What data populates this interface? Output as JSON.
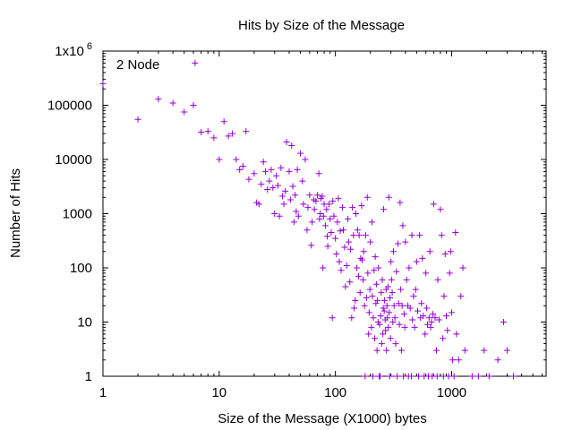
{
  "chart_data": {
    "type": "scatter",
    "title": "Hits by Size of the Message",
    "xlabel": "Size of the Message (X1000) bytes",
    "ylabel": "Number of Hits",
    "x_scale": "log",
    "y_scale": "log",
    "xlim": [
      1,
      6500
    ],
    "ylim": [
      1,
      1000000
    ],
    "grid": false,
    "legend_position": "top-left",
    "x_ticks": [
      {
        "value": 1,
        "label": "1"
      },
      {
        "value": 10,
        "label": "10"
      },
      {
        "value": 100,
        "label": "100"
      },
      {
        "value": 1000,
        "label": "1000"
      }
    ],
    "y_ticks": [
      {
        "value": 1,
        "label": "1"
      },
      {
        "value": 10,
        "label": "10"
      },
      {
        "value": 100,
        "label": "100"
      },
      {
        "value": 1000,
        "label": "1000"
      },
      {
        "value": 10000,
        "label": "10000"
      },
      {
        "value": 100000,
        "label": "100000"
      }
    ],
    "y_top_label": {
      "base": "1x10",
      "exponent": "6"
    },
    "series": [
      {
        "name": "2 Node",
        "color": "#9400d3",
        "marker": "plus",
        "points": [
          [
            1,
            250000
          ],
          [
            2,
            55000
          ],
          [
            3,
            130000
          ],
          [
            4,
            110000
          ],
          [
            5,
            75000
          ],
          [
            6,
            100000
          ],
          [
            6.2,
            600000
          ],
          [
            7,
            32000
          ],
          [
            8,
            33000
          ],
          [
            9,
            25000
          ],
          [
            10,
            10000
          ],
          [
            11,
            50000
          ],
          [
            12,
            27000
          ],
          [
            13,
            30000
          ],
          [
            14,
            10000
          ],
          [
            15,
            6500
          ],
          [
            16,
            7500
          ],
          [
            17,
            33000
          ],
          [
            18,
            4300
          ],
          [
            20,
            5500
          ],
          [
            21,
            1600
          ],
          [
            22,
            1500
          ],
          [
            23,
            3500
          ],
          [
            24,
            9000
          ],
          [
            25,
            6000
          ],
          [
            26,
            2800
          ],
          [
            27,
            4000
          ],
          [
            28,
            6500
          ],
          [
            29,
            3000
          ],
          [
            30,
            1000
          ],
          [
            31,
            5000
          ],
          [
            32,
            3300
          ],
          [
            33,
            900
          ],
          [
            34,
            7000
          ],
          [
            35,
            2100
          ],
          [
            36,
            1500
          ],
          [
            37,
            2600
          ],
          [
            38,
            21000
          ],
          [
            40,
            6000
          ],
          [
            41,
            1800
          ],
          [
            42,
            18000
          ],
          [
            43,
            3200
          ],
          [
            44,
            700
          ],
          [
            45,
            2200
          ],
          [
            46,
            1100
          ],
          [
            47,
            6500
          ],
          [
            48,
            900
          ],
          [
            50,
            13000
          ],
          [
            52,
            4000
          ],
          [
            53,
            1500
          ],
          [
            55,
            10000
          ],
          [
            57,
            500
          ],
          [
            58,
            1300
          ],
          [
            60,
            2200
          ],
          [
            62,
            260
          ],
          [
            63,
            700
          ],
          [
            65,
            1800
          ],
          [
            66,
            1200
          ],
          [
            68,
            1700
          ],
          [
            70,
            2200
          ],
          [
            72,
            5500
          ],
          [
            73,
            800
          ],
          [
            74,
            1000
          ],
          [
            75,
            1900
          ],
          [
            77,
            2100
          ],
          [
            78,
            100
          ],
          [
            79,
            900
          ],
          [
            80,
            1500
          ],
          [
            82,
            600
          ],
          [
            84,
            1200
          ],
          [
            85,
            380
          ],
          [
            86,
            250
          ],
          [
            88,
            1500
          ],
          [
            90,
            800
          ],
          [
            92,
            450
          ],
          [
            94,
            12
          ],
          [
            95,
            1700
          ],
          [
            97,
            900
          ],
          [
            100,
            350
          ],
          [
            102,
            180
          ],
          [
            104,
            700
          ],
          [
            106,
            1900
          ],
          [
            108,
            130
          ],
          [
            110,
            480
          ],
          [
            112,
            90
          ],
          [
            115,
            1300
          ],
          [
            117,
            500
          ],
          [
            120,
            240
          ],
          [
            122,
            45
          ],
          [
            125,
            110
          ],
          [
            128,
            800
          ],
          [
            130,
            300
          ],
          [
            133,
            55
          ],
          [
            135,
            220
          ],
          [
            138,
            12
          ],
          [
            140,
            1300
          ],
          [
            143,
            400
          ],
          [
            145,
            18
          ],
          [
            148,
            25
          ],
          [
            150,
            1000
          ],
          [
            153,
            100
          ],
          [
            155,
            500
          ],
          [
            158,
            70
          ],
          [
            160,
            400
          ],
          [
            163,
            35
          ],
          [
            165,
            150
          ],
          [
            168,
            1400
          ],
          [
            170,
            140
          ],
          [
            173,
            60
          ],
          [
            175,
            200
          ],
          [
            178,
            20
          ],
          [
            180,
            1
          ],
          [
            182,
            400
          ],
          [
            185,
            28
          ],
          [
            188,
            2000
          ],
          [
            190,
            80
          ],
          [
            193,
            6
          ],
          [
            195,
            15
          ],
          [
            198,
            40
          ],
          [
            200,
            300
          ],
          [
            204,
            8
          ],
          [
            206,
            700
          ],
          [
            208,
            30
          ],
          [
            210,
            1
          ],
          [
            212,
            12
          ],
          [
            215,
            90
          ],
          [
            218,
            5
          ],
          [
            220,
            160
          ],
          [
            223,
            22
          ],
          [
            225,
            50
          ],
          [
            228,
            3
          ],
          [
            230,
            25
          ],
          [
            233,
            10
          ],
          [
            235,
            100
          ],
          [
            238,
            1
          ],
          [
            240,
            9
          ],
          [
            243,
            1
          ],
          [
            245,
            13
          ],
          [
            248,
            35
          ],
          [
            250,
            4
          ],
          [
            253,
            60
          ],
          [
            256,
            6
          ],
          [
            258,
            18
          ],
          [
            260,
            1200
          ],
          [
            263,
            16
          ],
          [
            265,
            25
          ],
          [
            268,
            11
          ],
          [
            270,
            7
          ],
          [
            273,
            40
          ],
          [
            275,
            3
          ],
          [
            278,
            20
          ],
          [
            280,
            12
          ],
          [
            283,
            45
          ],
          [
            285,
            8
          ],
          [
            288,
            2000
          ],
          [
            290,
            15
          ],
          [
            293,
            1
          ],
          [
            295,
            28
          ],
          [
            298,
            5
          ],
          [
            300,
            130
          ],
          [
            304,
            60
          ],
          [
            308,
            35
          ],
          [
            312,
            10
          ],
          [
            316,
            200
          ],
          [
            320,
            20
          ],
          [
            325,
            12
          ],
          [
            330,
            4
          ],
          [
            335,
            85
          ],
          [
            340,
            1
          ],
          [
            345,
            280
          ],
          [
            350,
            22
          ],
          [
            355,
            9
          ],
          [
            360,
            1600
          ],
          [
            365,
            40
          ],
          [
            370,
            3
          ],
          [
            375,
            20
          ],
          [
            380,
            600
          ],
          [
            385,
            1
          ],
          [
            390,
            14
          ],
          [
            395,
            8
          ],
          [
            400,
            300
          ],
          [
            410,
            60
          ],
          [
            420,
            20
          ],
          [
            425,
            1
          ],
          [
            430,
            100
          ],
          [
            440,
            18
          ],
          [
            450,
            1
          ],
          [
            455,
            400
          ],
          [
            460,
            11
          ],
          [
            470,
            30
          ],
          [
            480,
            8
          ],
          [
            490,
            40
          ],
          [
            500,
            130
          ],
          [
            510,
            16
          ],
          [
            520,
            1
          ],
          [
            530,
            400
          ],
          [
            540,
            12
          ],
          [
            550,
            22
          ],
          [
            560,
            150
          ],
          [
            570,
            13
          ],
          [
            580,
            1
          ],
          [
            590,
            6
          ],
          [
            600,
            80
          ],
          [
            610,
            18
          ],
          [
            620,
            9
          ],
          [
            630,
            1
          ],
          [
            640,
            12
          ],
          [
            650,
            200
          ],
          [
            660,
            8
          ],
          [
            670,
            10
          ],
          [
            680,
            1
          ],
          [
            690,
            14
          ],
          [
            700,
            1500
          ],
          [
            720,
            12
          ],
          [
            740,
            3
          ],
          [
            750,
            1
          ],
          [
            760,
            60
          ],
          [
            780,
            11
          ],
          [
            800,
            1200
          ],
          [
            820,
            400
          ],
          [
            840,
            5
          ],
          [
            850,
            1
          ],
          [
            860,
            30
          ],
          [
            880,
            180
          ],
          [
            900,
            13
          ],
          [
            920,
            7
          ],
          [
            940,
            1
          ],
          [
            960,
            80
          ],
          [
            980,
            200
          ],
          [
            1000,
            15
          ],
          [
            1020,
            2
          ],
          [
            1050,
            1
          ],
          [
            1080,
            450
          ],
          [
            1100,
            6
          ],
          [
            1150,
            2
          ],
          [
            1200,
            30
          ],
          [
            1250,
            100
          ],
          [
            1300,
            3
          ],
          [
            1500,
            1
          ],
          [
            1700,
            1
          ],
          [
            1900,
            3
          ],
          [
            2100,
            1
          ],
          [
            2500,
            2
          ],
          [
            2800,
            10
          ],
          [
            3000,
            3
          ],
          [
            3400,
            1
          ]
        ]
      }
    ]
  }
}
